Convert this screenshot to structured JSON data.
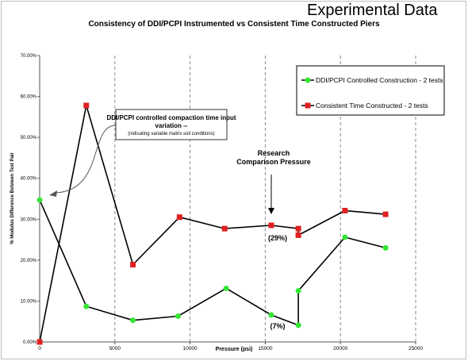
{
  "page": {
    "header": "Experimental Data",
    "title": "Consistency of DDI/PCPI Instrumented vs Consistent Time Constructed Piers"
  },
  "chart_data": {
    "type": "line",
    "title": "Consistency of DDI/PCPI Instrumented vs Consistent Time Constructed Piers",
    "xlabel": "Pressure (psi)",
    "ylabel": "% Modulus Difference Between Test Pair",
    "xlim": [
      0,
      25000
    ],
    "ylim": [
      0,
      0.7
    ],
    "x_ticks": [
      0,
      5000,
      10000,
      15000,
      20000,
      25000
    ],
    "x_tick_labels": [
      "0",
      "5000",
      "10000",
      "15000",
      "20000",
      "25000"
    ],
    "y_ticks": [
      0,
      0.1,
      0.2,
      0.3,
      0.4,
      0.5,
      0.6,
      0.7
    ],
    "y_tick_labels": [
      "0.00%",
      "10.00%",
      "20.00%",
      "30.00%",
      "40.00%",
      "50.00%",
      "60.00%",
      "70.00%"
    ],
    "grid": "vertical dashed",
    "legend_position": "top-right",
    "series": [
      {
        "name": "DDI/PCPI Controlled Construction - 2 tests",
        "color": "#33e633",
        "marker": "circle",
        "points": [
          [
            0,
            0.347
          ],
          [
            3100,
            0.087
          ],
          [
            6200,
            0.053
          ],
          [
            9200,
            0.063
          ],
          [
            12400,
            0.131
          ],
          [
            15400,
            0.066
          ],
          [
            17200,
            0.041
          ],
          [
            17200,
            0.125
          ],
          [
            20300,
            0.256
          ],
          [
            23000,
            0.23
          ]
        ]
      },
      {
        "name": "Consistent Time Constructed - 2 tests",
        "color": "#e02020",
        "marker": "square",
        "points": [
          [
            0,
            0.0
          ],
          [
            3100,
            0.578
          ],
          [
            6200,
            0.189
          ],
          [
            9300,
            0.305
          ],
          [
            12300,
            0.277
          ],
          [
            15400,
            0.285
          ],
          [
            17200,
            0.277
          ],
          [
            17200,
            0.261
          ],
          [
            20300,
            0.321
          ],
          [
            23000,
            0.312
          ]
        ]
      }
    ],
    "annotations": [
      {
        "id": "callout",
        "text_lines": [
          "DDI/PCPI controlled compaction time input",
          "variation --",
          "(indicating variable matrix soil conditions)"
        ]
      },
      {
        "id": "research",
        "text_lines": [
          "Research",
          "Comparison Pressure"
        ]
      },
      {
        "id": "pct29",
        "text": "(29%)"
      },
      {
        "id": "pct7",
        "text": "(7%)"
      }
    ]
  }
}
